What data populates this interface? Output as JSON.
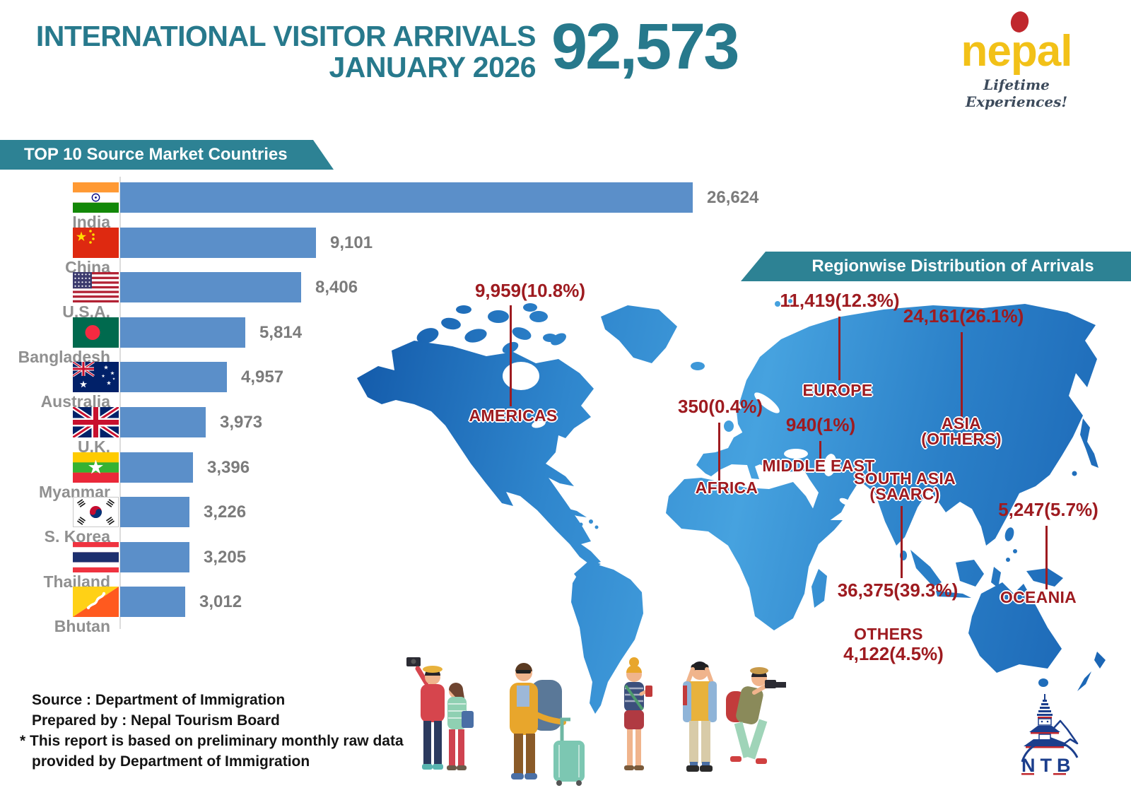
{
  "header": {
    "title_line1": "INTERNATIONAL VISITOR ARRIVALS",
    "title_line2": "JANUARY 2026",
    "total": "92,573",
    "brand": {
      "name": "nepal",
      "tagline": "Lifetime Experiences!"
    }
  },
  "top10": {
    "banner": "TOP 10 Source Market Countries",
    "countries": [
      {
        "name": "India",
        "value": "26,624",
        "flag": "india"
      },
      {
        "name": "China",
        "value": "9,101",
        "flag": "china"
      },
      {
        "name": "U.S.A.",
        "value": "8,406",
        "flag": "usa"
      },
      {
        "name": "Bangladesh",
        "value": "5,814",
        "flag": "bangladesh"
      },
      {
        "name": "Australia",
        "value": "4,957",
        "flag": "australia"
      },
      {
        "name": "U.K.",
        "value": "3,973",
        "flag": "uk"
      },
      {
        "name": "Myanmar",
        "value": "3,396",
        "flag": "myanmar"
      },
      {
        "name": "S. Korea",
        "value": "3,226",
        "flag": "skorea"
      },
      {
        "name": "Thailand",
        "value": "3,205",
        "flag": "thailand"
      },
      {
        "name": "Bhutan",
        "value": "3,012",
        "flag": "bhutan"
      }
    ]
  },
  "regions": {
    "banner": "Regionwise Distribution of Arrivals",
    "items": [
      {
        "name": "AMERICAS",
        "value": "9,959(10.8%)"
      },
      {
        "name": "EUROPE",
        "value": "11,419(12.3%)"
      },
      {
        "name": "ASIA (OTHERS)",
        "value": "24,161(26.1%)"
      },
      {
        "name": "AFRICA",
        "value": "350(0.4%)"
      },
      {
        "name": "MIDDLE EAST",
        "value": "940(1%)"
      },
      {
        "name": "SOUTH ASIA (SAARC)",
        "value": "36,375(39.3%)"
      },
      {
        "name": "OCEANIA",
        "value": "5,247(5.7%)"
      },
      {
        "name": "OTHERS",
        "value": "4,122(4.5%)"
      }
    ]
  },
  "footer": {
    "line1": "Source : Department of Immigration",
    "line2": "Prepared by : Nepal Tourism Board",
    "line3": "* This report is based on preliminary monthly raw data",
    "line4": "provided by Department of Immigration",
    "ntb": "NTB"
  },
  "colors": {
    "teal_text": "#27798c",
    "banner_teal": "#2d8294",
    "bar_blue": "#5b8fc9",
    "dark_red": "#9e1b20",
    "map_blue_dark": "#1258a8",
    "map_blue_light": "#46a2df",
    "brand_yellow": "#f2c118",
    "brand_red": "#c0272d"
  },
  "chart_data": [
    {
      "type": "bar",
      "orientation": "horizontal",
      "title": "TOP 10 Source Market Countries",
      "categories": [
        "India",
        "China",
        "U.S.A.",
        "Bangladesh",
        "Australia",
        "U.K.",
        "Myanmar",
        "S. Korea",
        "Thailand",
        "Bhutan"
      ],
      "values": [
        26624,
        9101,
        8406,
        5814,
        4957,
        3973,
        3396,
        3226,
        3205,
        3012
      ],
      "xlim": [
        0,
        26624
      ],
      "bar_color": "#5b8fc9",
      "legend": "none",
      "grid": "off"
    },
    {
      "type": "map-annotation",
      "title": "Regionwise Distribution of Arrivals",
      "regions": [
        "AMERICAS",
        "EUROPE",
        "ASIA (OTHERS)",
        "AFRICA",
        "MIDDLE EAST",
        "SOUTH ASIA (SAARC)",
        "OCEANIA",
        "OTHERS"
      ],
      "values": [
        9959,
        11419,
        24161,
        350,
        940,
        36375,
        5247,
        4122
      ],
      "percents": [
        10.8,
        12.3,
        26.1,
        0.4,
        1,
        39.3,
        5.7,
        4.5
      ],
      "total": 92573
    }
  ]
}
